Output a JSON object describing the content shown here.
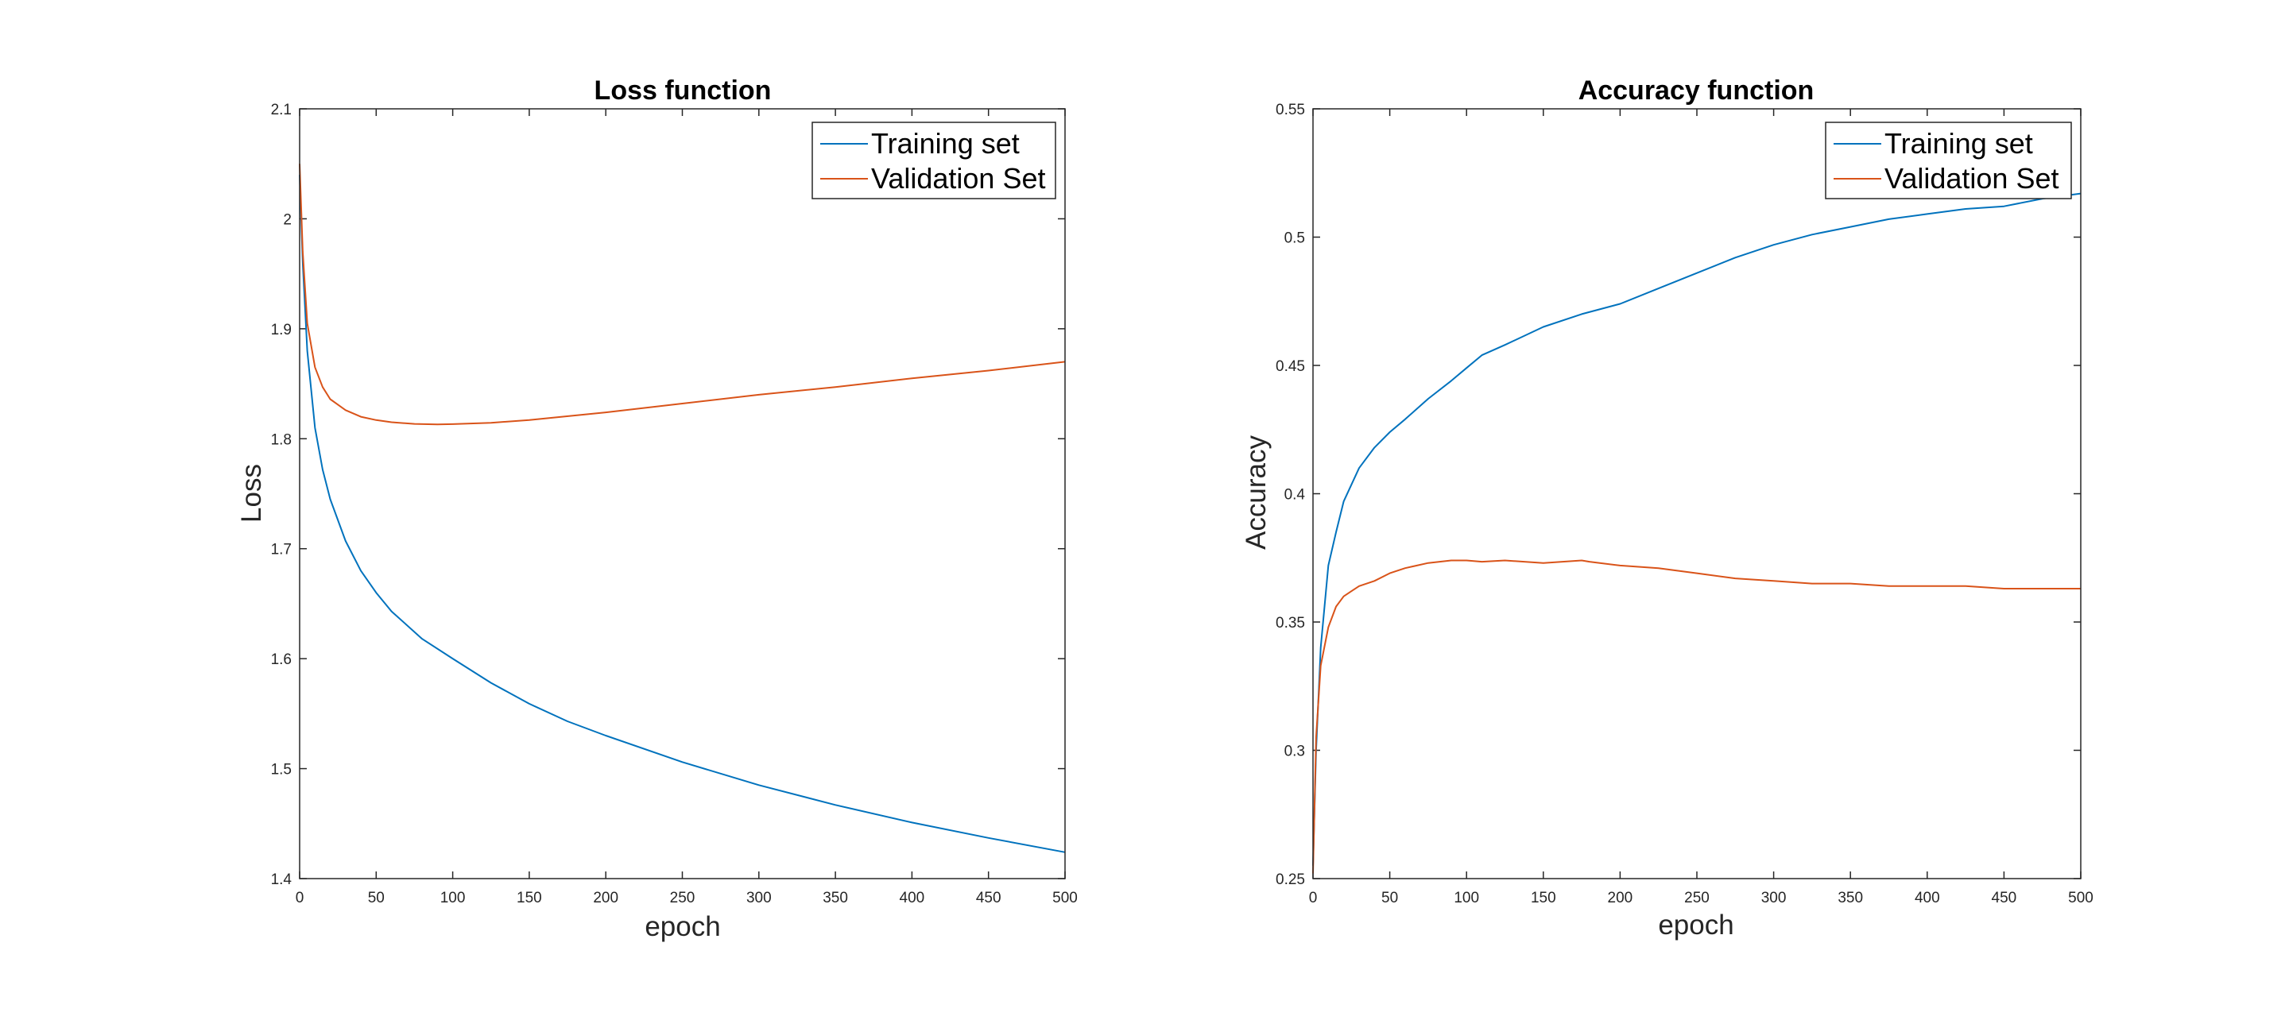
{
  "chart_data": [
    {
      "type": "line",
      "title": "Loss function",
      "xlabel": "epoch",
      "ylabel": "Loss",
      "xlim": [
        0,
        500
      ],
      "ylim": [
        1.4,
        2.1
      ],
      "xticks": [
        0,
        50,
        100,
        150,
        200,
        250,
        300,
        350,
        400,
        450,
        500
      ],
      "yticks": [
        1.4,
        1.5,
        1.6,
        1.7,
        1.8,
        1.9,
        2,
        2.1
      ],
      "ytick_labels": [
        "1.4",
        "1.5",
        "1.6",
        "1.7",
        "1.8",
        "1.9",
        "2",
        "2.1"
      ],
      "grid": false,
      "legend_position": "top-right",
      "series": [
        {
          "name": "Training set",
          "color": "#0072BD",
          "x": [
            0,
            2,
            5,
            10,
            15,
            20,
            30,
            40,
            50,
            60,
            80,
            100,
            125,
            150,
            175,
            200,
            250,
            300,
            350,
            400,
            450,
            500
          ],
          "y": [
            2.04,
            1.96,
            1.88,
            1.81,
            1.772,
            1.745,
            1.707,
            1.68,
            1.66,
            1.643,
            1.618,
            1.6,
            1.578,
            1.559,
            1.543,
            1.53,
            1.506,
            1.485,
            1.467,
            1.451,
            1.437,
            1.424
          ]
        },
        {
          "name": "Validation Set",
          "color": "#D95319",
          "x": [
            0,
            2,
            5,
            10,
            15,
            20,
            30,
            40,
            50,
            60,
            75,
            90,
            100,
            125,
            150,
            200,
            250,
            300,
            350,
            400,
            450,
            500
          ],
          "y": [
            2.05,
            1.97,
            1.905,
            1.865,
            1.847,
            1.836,
            1.826,
            1.82,
            1.817,
            1.815,
            1.8135,
            1.813,
            1.8133,
            1.8145,
            1.817,
            1.824,
            1.832,
            1.84,
            1.847,
            1.855,
            1.862,
            1.87
          ]
        }
      ]
    },
    {
      "type": "line",
      "title": "Accuracy function",
      "xlabel": "epoch",
      "ylabel": "Accuracy",
      "xlim": [
        0,
        500
      ],
      "ylim": [
        0.25,
        0.55
      ],
      "xticks": [
        0,
        50,
        100,
        150,
        200,
        250,
        300,
        350,
        400,
        450,
        500
      ],
      "yticks": [
        0.25,
        0.3,
        0.35,
        0.4,
        0.45,
        0.5,
        0.55
      ],
      "ytick_labels": [
        "0.25",
        "0.3",
        "0.35",
        "0.4",
        "0.45",
        "0.5",
        "0.55"
      ],
      "grid": false,
      "legend_position": "top-right",
      "series": [
        {
          "name": "Training set",
          "color": "#0072BD",
          "x": [
            0,
            2,
            5,
            10,
            15,
            20,
            30,
            40,
            50,
            60,
            75,
            90,
            100,
            110,
            125,
            150,
            175,
            200,
            225,
            250,
            275,
            300,
            325,
            350,
            375,
            400,
            425,
            450,
            475,
            500
          ],
          "y": [
            0.255,
            0.3,
            0.34,
            0.372,
            0.385,
            0.397,
            0.41,
            0.418,
            0.424,
            0.429,
            0.437,
            0.444,
            0.449,
            0.454,
            0.458,
            0.465,
            0.47,
            0.474,
            0.48,
            0.486,
            0.492,
            0.497,
            0.501,
            0.504,
            0.507,
            0.509,
            0.511,
            0.512,
            0.515,
            0.517
          ]
        },
        {
          "name": "Validation Set",
          "color": "#D95319",
          "x": [
            0,
            2,
            5,
            10,
            15,
            20,
            25,
            30,
            40,
            50,
            60,
            75,
            90,
            100,
            110,
            125,
            150,
            175,
            180,
            200,
            225,
            250,
            275,
            300,
            325,
            350,
            375,
            400,
            425,
            450,
            475,
            500
          ],
          "y": [
            0.252,
            0.305,
            0.333,
            0.348,
            0.356,
            0.36,
            0.362,
            0.364,
            0.366,
            0.369,
            0.371,
            0.373,
            0.374,
            0.374,
            0.3735,
            0.374,
            0.373,
            0.374,
            0.3735,
            0.372,
            0.371,
            0.369,
            0.367,
            0.366,
            0.365,
            0.365,
            0.364,
            0.364,
            0.364,
            0.363,
            0.363,
            0.363
          ]
        }
      ]
    }
  ]
}
